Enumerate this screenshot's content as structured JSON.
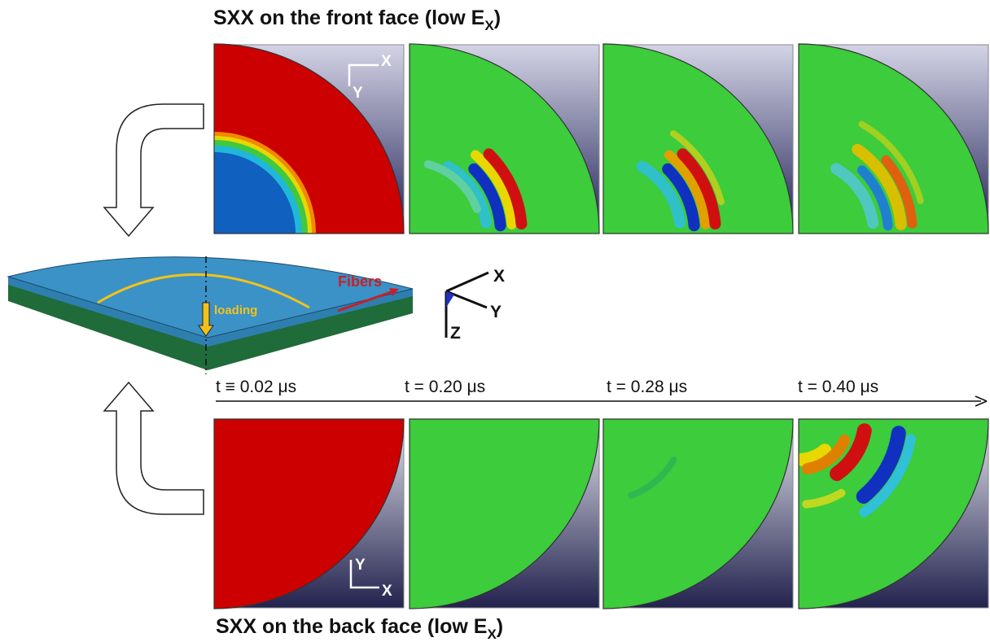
{
  "front_title": {
    "text": "SXX on the front face (low E",
    "subscript": "X",
    "suffix": ")"
  },
  "back_title": {
    "text": "SXX on the back face (low E",
    "subscript": "X",
    "suffix": ")"
  },
  "time_labels": [
    "t ≡ 0.02 μs",
    "t = 0.20 μs",
    "t = 0.28 μs",
    "t = 0.40 μs"
  ],
  "plate": {
    "fibers": "Fibers",
    "loading": "loading"
  },
  "triad": {
    "x": "X",
    "y": "Y",
    "z": "Z"
  },
  "front_panel_axes": {
    "x": "X",
    "y": "Y"
  },
  "back_panel_axes": {
    "x": "X",
    "y": "Y"
  }
}
